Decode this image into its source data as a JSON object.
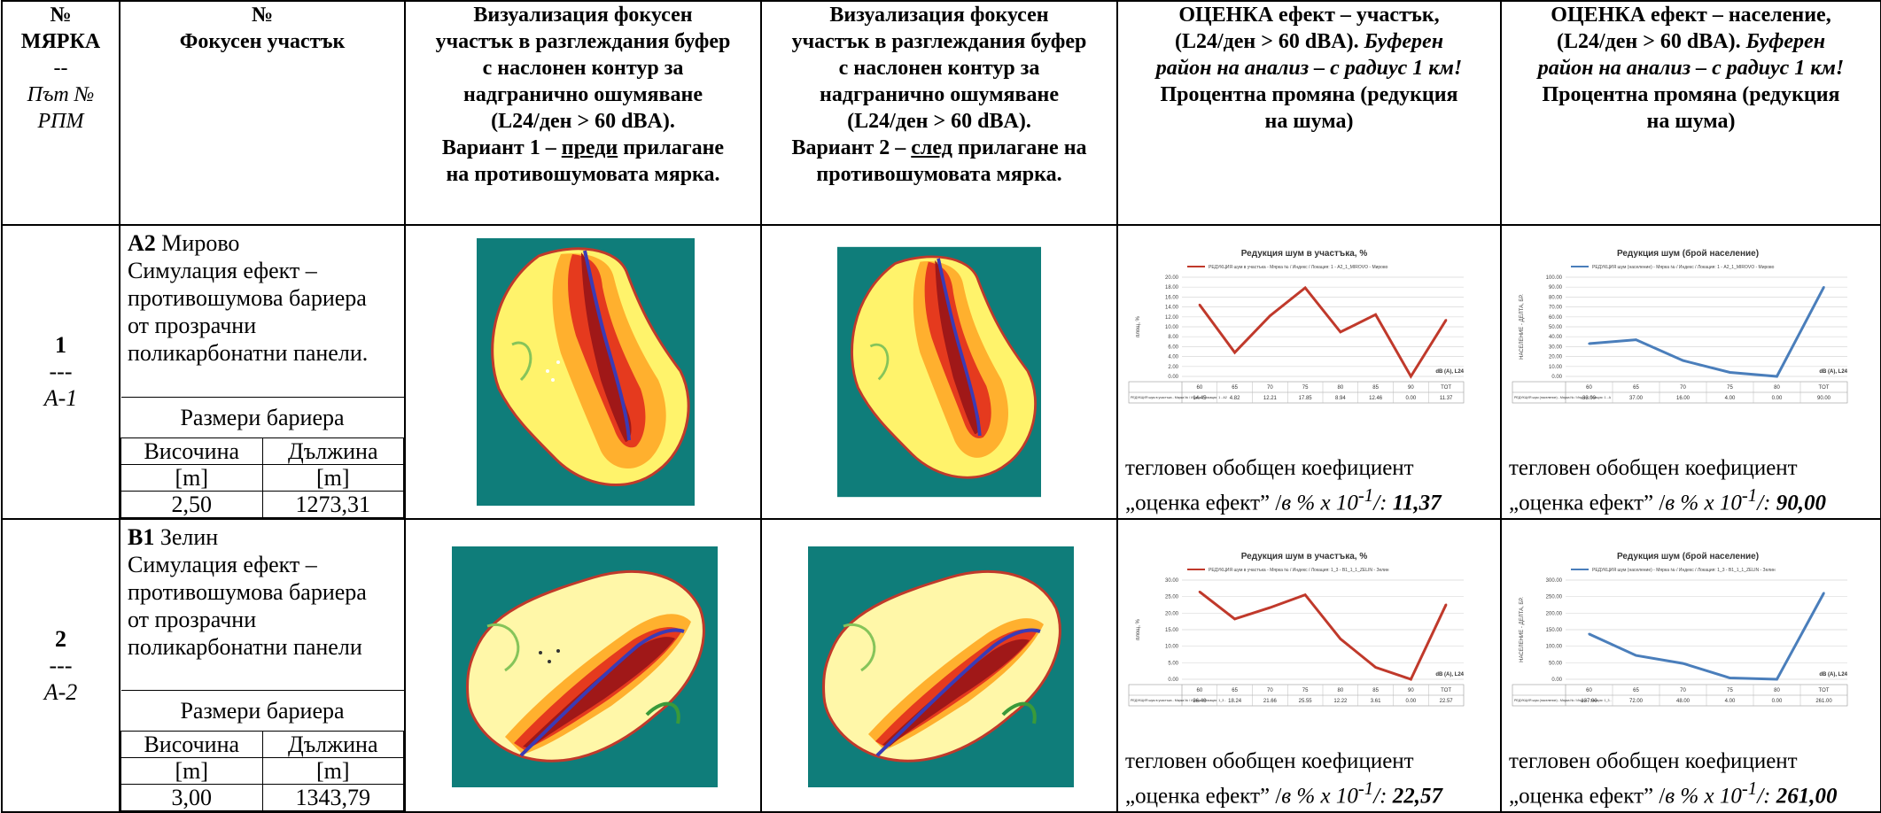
{
  "header": {
    "col1_line1": "№",
    "col1_line2": "МЯРКА",
    "col1_line3": "--",
    "col1_line4": "Път №",
    "col1_line5": "РПМ",
    "col2_line1": "№",
    "col2_line2": "Фокусен участък",
    "col3_line1": "Визуализация фокусен",
    "col3_line2": "участък в разглеждания буфер",
    "col3_line3": "с наслонен контур за",
    "col3_line4": "надгранично ошумяване",
    "col3_line5": "(L24/ден > 60 dBA).",
    "col3_line6a": "Вариант 1 – ",
    "col3_line6u": "преди",
    "col3_line6b": " прилагане",
    "col3_line7": "на противошумовата мярка.",
    "col4_line1": "Визуализация фокусен",
    "col4_line2": "участък в разглеждания буфер",
    "col4_line3": "с наслонен контур за",
    "col4_line4": "надгранично ошумяване",
    "col4_line5": "(L24/ден > 60 dBA).",
    "col4_line6a": "Вариант 2 – ",
    "col4_line6u": "след",
    "col4_line6b": " прилагане на",
    "col4_line7": "противошумовата мярка.",
    "col5_line1": "ОЦЕНКА ефект – участък,",
    "col5_line2a": "(L24/ден > 60 dBA). ",
    "col5_line2b": "Буферен",
    "col5_line3": "район на анализ – с радиус 1 км!",
    "col5_line4": "Процентна промяна (редукция",
    "col5_line5": "на шума)",
    "col6_line1": "ОЦЕНКА ефект – население,",
    "col6_line2a": "(L24/ден > 60 dBA). ",
    "col6_line2b": "Буферен",
    "col6_line3": "район на анализ – с радиус 1 км!",
    "col6_line4": "Процентна промяна (редукция",
    "col6_line5": "на шума)"
  },
  "rows": [
    {
      "num": "1",
      "sep": "---",
      "code": "А-1",
      "site_code": "А2",
      "site_name": " Мирово",
      "desc_lines": [
        "Симулация ефект –",
        "противошумова бариера",
        "от прозрачни",
        "поликарбонатни панели."
      ],
      "barrier_caption": "Размери бариера",
      "height_label": "Височина",
      "length_label": "Дължина",
      "unit": "[m]",
      "height": "2,50",
      "length": "1273,31",
      "caption_line1": "тегловен обобщен коефициент",
      "caption_line2_prefix": "„оценка ефект” /",
      "caption_unit": "в % х 10",
      "caption_exp": "-1",
      "caption_end": "/: ",
      "eff_area": "11,37",
      "eff_pop": "90,00",
      "chart_area": {
        "title": "Редукция шум в участъка, %",
        "legend": "РЕДУКЦИЯ шум в участъка - Мярка № / Индекс / Локация: 1 - А2_1_MIROVO - Мирово",
        "ylabel": "площ, %",
        "xunit": "dB (A), L24",
        "row_label": "РЕДУКЦИЯ шум в участъка - Мярка № / Индекс / Локация: 1 - А2_1_MIROVO - Мирово",
        "y_ticks": [
          "20.00",
          "18.00",
          "16.00",
          "14.00",
          "12.00",
          "10.00",
          "8.00",
          "6.00",
          "4.00",
          "2.00",
          "0.00"
        ],
        "values_text": [
          "14.45",
          "4.82",
          "12.21",
          "17.85",
          "8.94",
          "12.46",
          "0.00",
          "11.37"
        ]
      },
      "chart_pop": {
        "title": "Редукция шум (брой население)",
        "legend": "РЕДУКЦИЯ шум (население) - Мярка № / Индекс / Локация: 1 - А2_1_MIROVO - Мирово",
        "ylabel": "НАСЕЛЕНИЕ - ДЕЛТА, БР.",
        "xunit": "dB (A), L24",
        "row_label": "РЕДУКЦИЯ шум (население) - Мярка № / Индекс / Локация: 1 - А2_1_MIROVO - Мирово",
        "y_ticks": [
          "100.00",
          "90.00",
          "80.00",
          "70.00",
          "60.00",
          "50.00",
          "40.00",
          "30.00",
          "20.00",
          "10.00",
          "0.00"
        ],
        "values_text": [
          "33.00",
          "37.00",
          "16.00",
          "4.00",
          "0.00",
          "90.00"
        ]
      }
    },
    {
      "num": "2",
      "sep": "---",
      "code": "А-2",
      "site_code": "В1",
      "site_name": " Зелин",
      "desc_lines": [
        "Симулация ефект –",
        "противошумова бариера",
        "от прозрачни",
        "поликарбонатни панели"
      ],
      "barrier_caption": "Размери бариера",
      "height_label": "Височина",
      "length_label": "Дължина",
      "unit": "[m]",
      "height": "3,00",
      "length": "1343,79",
      "caption_line1": "тегловен обобщен коефициент",
      "caption_line2_prefix": "„оценка ефект” /",
      "caption_unit": "в % х 10",
      "caption_exp": "-1",
      "caption_end": "/: ",
      "eff_area": "22,57",
      "eff_pop": "261,00",
      "chart_area": {
        "title": "Редукция шум в участъка, %",
        "legend": "РЕДУКЦИЯ шум в участъка - Мярка № / Индекс / Локация: 1_3 - В1_1_1_ZELIN - Зелин",
        "ylabel": "площ, %",
        "xunit": "dB (A), L24",
        "row_label": "РЕДУКЦИЯ шум в участъка - Мярка № / Индекс / Локация: 1_3 - В1_1_1_ZELIN - Зелин",
        "y_ticks": [
          "30.00",
          "25.00",
          "20.00",
          "15.00",
          "10.00",
          "5.00",
          "0.00"
        ],
        "values_text": [
          "26.46",
          "18.24",
          "21.66",
          "25.55",
          "12.22",
          "3.61",
          "0.00",
          "22.57"
        ]
      },
      "chart_pop": {
        "title": "Редукция шум (брой население)",
        "legend": "РЕДУКЦИЯ шум (население) - Мярка № / Индекс / Локация: 1_3 - В1_1_1_ZELIN - Зелин",
        "ylabel": "НАСЕЛЕНИЕ - ДЕЛТА, БР.",
        "xunit": "dB (A), L24",
        "row_label": "РЕДУКЦИЯ шум (население) - Мярка № / Индекс / Локация: 1_3 - В1_1_1_ZELIN - Зелин",
        "y_ticks": [
          "300.00",
          "250.00",
          "200.00",
          "150.00",
          "100.00",
          "50.00",
          "0.00"
        ],
        "values_text": [
          "137.00",
          "72.00",
          "48.00",
          "4.00",
          "0.00",
          "261.00"
        ]
      }
    }
  ],
  "chart_data": [
    {
      "type": "line",
      "title": "Редукция шум в участъка, %",
      "ylabel": "площ, %",
      "xlabel": "dB (A), L24",
      "categories": [
        "60",
        "65",
        "70",
        "75",
        "80",
        "85",
        "90",
        "TOT"
      ],
      "series": [
        {
          "name": "РЕДУКЦИЯ шум в участъка - Мярка № / Индекс / Локация: 1 - А2_1_MIROVO - Мирово",
          "values": [
            14.45,
            4.82,
            12.21,
            17.85,
            8.94,
            12.46,
            0.0,
            11.37
          ]
        }
      ],
      "ylim": [
        0,
        20
      ],
      "color": "#c0392b"
    },
    {
      "type": "line",
      "title": "Редукция шум (брой население)",
      "ylabel": "НАСЕЛЕНИЕ - ДЕЛТА, БР.",
      "xlabel": "dB (A), L24",
      "categories": [
        "60",
        "65",
        "70",
        "75",
        "80",
        "TOT"
      ],
      "series": [
        {
          "name": "РЕДУКЦИЯ шум (население) - Мярка № / Индекс / Локация: 1 - А2_1_MIROVO - Мирово",
          "values": [
            33,
            37,
            16,
            4,
            0,
            90
          ]
        }
      ],
      "ylim": [
        0,
        100
      ],
      "color": "#4a7ebb"
    },
    {
      "type": "line",
      "title": "Редукция шум в участъка, %",
      "ylabel": "площ, %",
      "xlabel": "dB (A), L24",
      "categories": [
        "60",
        "65",
        "70",
        "75",
        "80",
        "85",
        "90",
        "TOT"
      ],
      "series": [
        {
          "name": "РЕДУКЦИЯ шум в участъка - Мярка № / Индекс / Локация: 1_3 - В1_1_1_ZELIN - Зелин",
          "values": [
            26.46,
            18.24,
            21.66,
            25.55,
            12.22,
            3.61,
            0.0,
            22.57
          ]
        }
      ],
      "ylim": [
        0,
        30
      ],
      "color": "#c0392b"
    },
    {
      "type": "line",
      "title": "Редукция шум (брой население)",
      "ylabel": "НАСЕЛЕНИЕ - ДЕЛТА, БР.",
      "xlabel": "dB (A), L24",
      "categories": [
        "60",
        "65",
        "70",
        "75",
        "80",
        "TOT"
      ],
      "series": [
        {
          "name": "РЕДУКЦИЯ шум (население) - Мярка № / Индекс / Локация: 1_3 - В1_1_1_ZELIN - Зелин",
          "values": [
            137,
            72,
            48,
            4,
            0,
            261
          ]
        }
      ],
      "ylim": [
        0,
        300
      ],
      "color": "#4a7ebb"
    }
  ],
  "colors": {
    "map_bg": "#0f7d7a",
    "map_border": "#c0392b",
    "road": "#3b3bb5"
  }
}
